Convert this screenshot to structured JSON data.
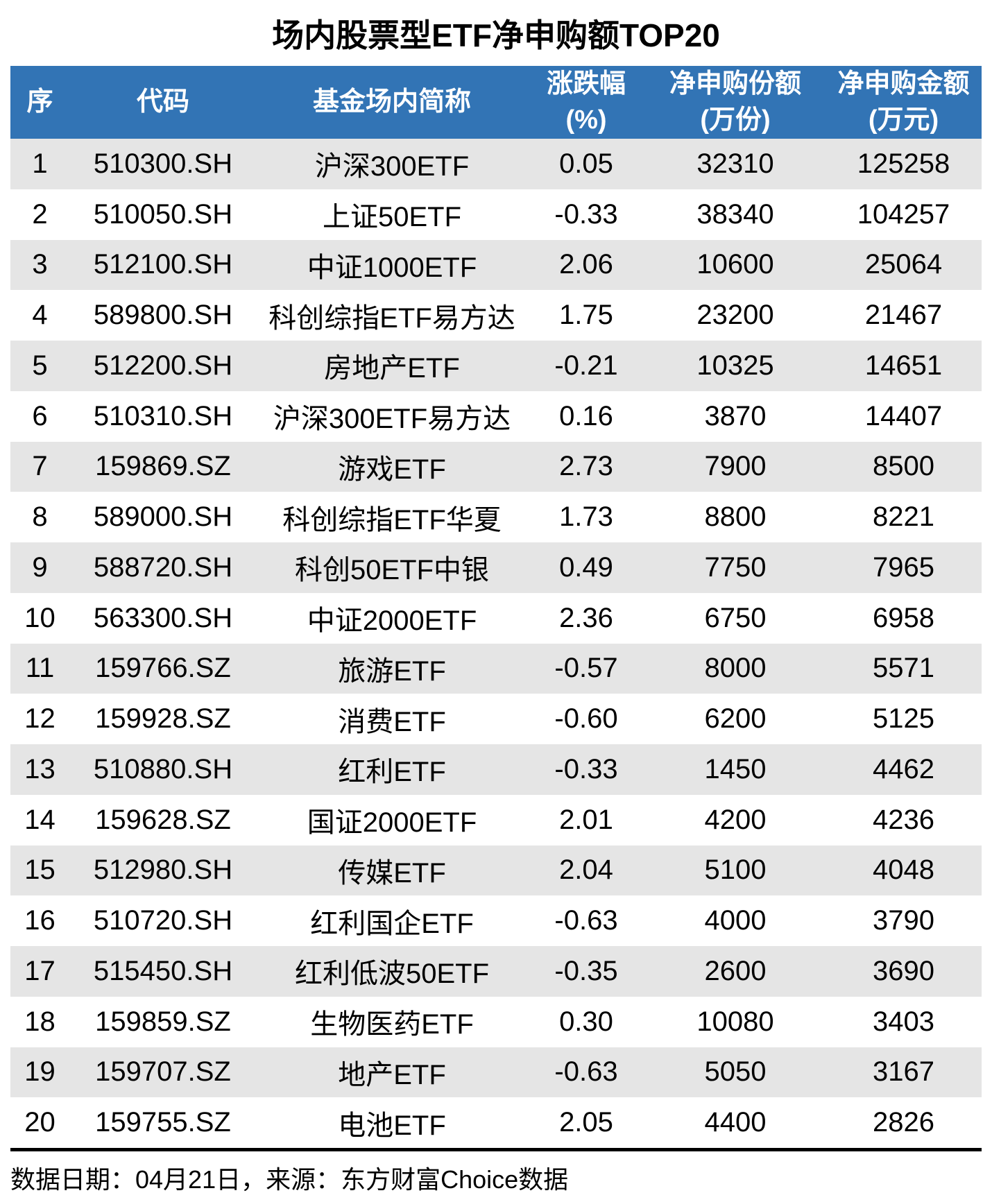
{
  "title": "场内股票型ETF净申购额TOP20",
  "header": {
    "cols": [
      {
        "line1": "序",
        "line2": ""
      },
      {
        "line1": "代码",
        "line2": ""
      },
      {
        "line1": "基金场内简称",
        "line2": ""
      },
      {
        "line1": "涨跌幅",
        "line2": "(%)"
      },
      {
        "line1": "净申购份额",
        "line2": "(万份)"
      },
      {
        "line1": "净申购金额",
        "line2": "(万元)"
      }
    ]
  },
  "chart_data": {
    "type": "table",
    "title": "场内股票型ETF净申购额TOP20",
    "columns": [
      "序",
      "代码",
      "基金场内简称",
      "涨跌幅(%)",
      "净申购份额(万份)",
      "净申购金额(万元)"
    ],
    "rows": [
      [
        1,
        "510300.SH",
        "沪深300ETF",
        "0.05",
        32310,
        125258
      ],
      [
        2,
        "510050.SH",
        "上证50ETF",
        "-0.33",
        38340,
        104257
      ],
      [
        3,
        "512100.SH",
        "中证1000ETF",
        "2.06",
        10600,
        25064
      ],
      [
        4,
        "589800.SH",
        "科创综指ETF易方达",
        "1.75",
        23200,
        21467
      ],
      [
        5,
        "512200.SH",
        "房地产ETF",
        "-0.21",
        10325,
        14651
      ],
      [
        6,
        "510310.SH",
        "沪深300ETF易方达",
        "0.16",
        3870,
        14407
      ],
      [
        7,
        "159869.SZ",
        "游戏ETF",
        "2.73",
        7900,
        8500
      ],
      [
        8,
        "589000.SH",
        "科创综指ETF华夏",
        "1.73",
        8800,
        8221
      ],
      [
        9,
        "588720.SH",
        "科创50ETF中银",
        "0.49",
        7750,
        7965
      ],
      [
        10,
        "563300.SH",
        "中证2000ETF",
        "2.36",
        6750,
        6958
      ],
      [
        11,
        "159766.SZ",
        "旅游ETF",
        "-0.57",
        8000,
        5571
      ],
      [
        12,
        "159928.SZ",
        "消费ETF",
        "-0.60",
        6200,
        5125
      ],
      [
        13,
        "510880.SH",
        "红利ETF",
        "-0.33",
        1450,
        4462
      ],
      [
        14,
        "159628.SZ",
        "国证2000ETF",
        "2.01",
        4200,
        4236
      ],
      [
        15,
        "512980.SH",
        "传媒ETF",
        "2.04",
        5100,
        4048
      ],
      [
        16,
        "510720.SH",
        "红利国企ETF",
        "-0.63",
        4000,
        3790
      ],
      [
        17,
        "515450.SH",
        "红利低波50ETF",
        "-0.35",
        2600,
        3690
      ],
      [
        18,
        "159859.SZ",
        "生物医药ETF",
        "0.30",
        10080,
        3403
      ],
      [
        19,
        "159707.SZ",
        "地产ETF",
        "-0.63",
        5050,
        3167
      ],
      [
        20,
        "159755.SZ",
        "电池ETF",
        "2.05",
        4400,
        2826
      ]
    ]
  },
  "footer": {
    "text": "数据日期：04月21日，来源：东方财富Choice数据"
  },
  "colors": {
    "header_bg": "#3274B5",
    "stripe_bg": "#E5E5E5",
    "header_text": "#FFFFFF",
    "text": "#000000"
  }
}
